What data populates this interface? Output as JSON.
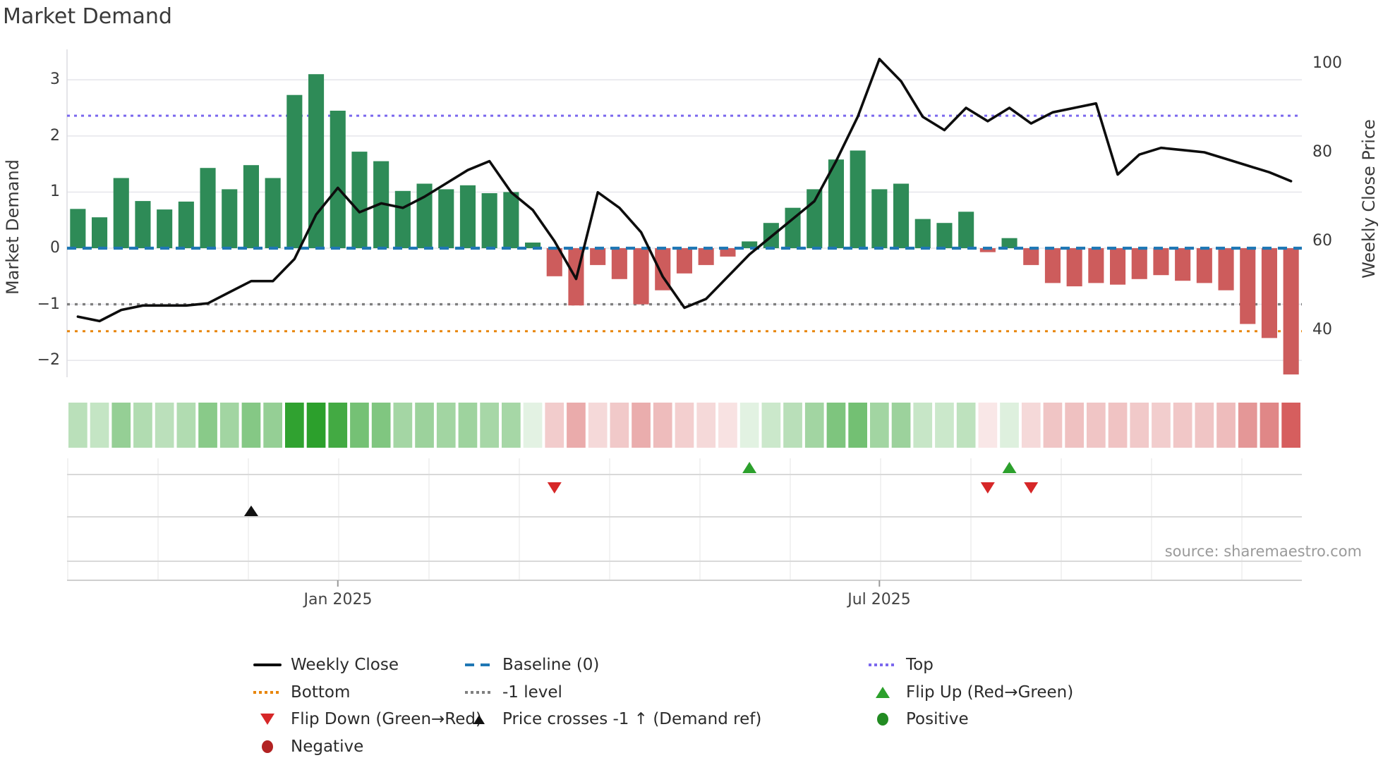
{
  "title": "Market Demand",
  "source": "source: sharemaestro.com",
  "axes": {
    "left": {
      "label": "Market Demand",
      "ticks": [
        "3",
        "2",
        "1",
        "0",
        "−1",
        "−2"
      ],
      "tick_values": [
        3,
        2,
        1,
        0,
        -1,
        -2
      ]
    },
    "right": {
      "label": "Weekly Close Price",
      "ticks": [
        "100",
        "80",
        "60",
        "40"
      ],
      "tick_values": [
        100,
        80,
        60,
        40
      ]
    },
    "x": {
      "ticks": [
        "Jan 2025",
        "Jul 2025"
      ]
    }
  },
  "chart_data": {
    "type": "bar+line",
    "x_unit": "week",
    "n_weeks": 57,
    "x_ticks": [
      {
        "label": "Jan 2025",
        "week": 12.0
      },
      {
        "label": "Jul 2025",
        "week": 37.0
      }
    ],
    "series": [
      {
        "name": "Market Demand (bars, left axis)",
        "values": [
          0.7,
          0.55,
          1.25,
          0.84,
          0.69,
          0.83,
          1.43,
          1.05,
          1.48,
          1.25,
          2.73,
          3.1,
          2.45,
          1.72,
          1.55,
          1.02,
          1.15,
          1.05,
          1.12,
          0.98,
          1.0,
          0.1,
          -0.5,
          -1.02,
          -0.3,
          -0.55,
          -1.0,
          -0.75,
          -0.45,
          -0.3,
          -0.15,
          0.12,
          0.45,
          0.72,
          1.05,
          1.58,
          1.74,
          1.05,
          1.15,
          0.52,
          0.45,
          0.65,
          -0.07,
          0.18,
          -0.3,
          -0.62,
          -0.68,
          -0.62,
          -0.65,
          -0.55,
          -0.48,
          -0.58,
          -0.62,
          -0.75,
          -1.35,
          -1.6,
          -2.25
        ]
      },
      {
        "name": "Weekly Close (line, right axis)",
        "values": [
          43,
          42,
          44.5,
          45.5,
          45.5,
          45.5,
          46,
          48.5,
          51,
          51,
          56,
          66,
          72,
          66.5,
          68.5,
          67.5,
          70,
          73,
          76,
          78,
          71,
          67,
          60,
          51.5,
          71,
          67.5,
          62,
          52,
          45,
          47,
          52,
          57,
          61,
          65,
          69,
          78,
          88,
          101,
          96,
          88,
          85,
          90,
          87,
          90,
          86.5,
          89,
          90,
          91,
          75,
          79.5,
          81,
          80.5,
          80,
          78.5,
          77,
          75.5,
          73.5
        ]
      }
    ],
    "ref_lines": {
      "baseline": 0,
      "top": 2.36,
      "minus_one": -1,
      "bottom": -1.48
    },
    "ylim_demand": [
      -2.45,
      3.4
    ],
    "ylim_price": [
      37,
      103
    ],
    "markers": {
      "price_cross_minus1_weeks": [
        8
      ],
      "flip_down_weeks": [
        22,
        42,
        44
      ],
      "flip_up_weeks": [
        31,
        43
      ]
    },
    "heatmap": {
      "description": "weekly demand mapped to green (positive) / red (negative) intensity"
    }
  },
  "legend": {
    "columns": [
      [
        {
          "type": "line",
          "color": "#0d0d0d",
          "label": "Weekly Close"
        },
        {
          "type": "dot",
          "color": "#e8860d",
          "label": "Bottom"
        },
        {
          "type": "tri-down",
          "color": "#d62728",
          "label": "Flip Down (Green→Red)"
        },
        {
          "type": "circle",
          "color": "#b22222",
          "label": "Negative"
        }
      ],
      [
        {
          "type": "dash",
          "color": "#1f77b4",
          "label": "Baseline (0)"
        },
        {
          "type": "dot",
          "color": "#7f7f7f",
          "label": "-1 level"
        },
        {
          "type": "tri-up-small",
          "color": "#111111",
          "label": "Price crosses -1 ↑ (Demand ref)"
        }
      ],
      [
        {
          "type": "dot",
          "color": "#7b68ee",
          "label": "Top"
        },
        {
          "type": "tri-up",
          "color": "#2ca02c",
          "label": "Flip Up (Red→Green)"
        },
        {
          "type": "circle",
          "color": "#228b22",
          "label": "Positive"
        }
      ]
    ]
  },
  "colors": {
    "bar_positive": "#2e8b57",
    "bar_negative": "#cd5c5c",
    "price_line": "#0d0d0d",
    "baseline": "#1f77b4",
    "top_line": "#7b68ee",
    "bottom_line": "#e8860d",
    "minus_one_line": "#7f7f7f",
    "grid": "#e7e7ec",
    "heat_green": [
      44,
      160,
      44
    ],
    "heat_red": [
      205,
      60,
      60
    ]
  }
}
